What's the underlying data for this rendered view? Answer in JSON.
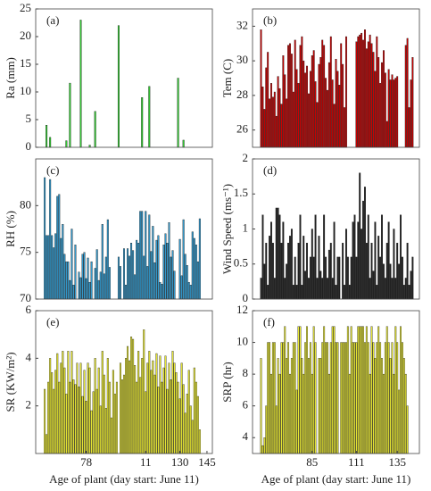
{
  "chart_data": [
    {
      "type": "bar",
      "tag": "(a)",
      "ylabel": "Ra (mm)",
      "color": "#33cc33",
      "xlim": [
        50,
        148
      ],
      "ylim": [
        0,
        25
      ],
      "yticks": [
        0,
        5,
        10,
        15,
        20,
        25
      ],
      "x": [
        55,
        56,
        57,
        58,
        59,
        60,
        61,
        62,
        63,
        64,
        65,
        66,
        67,
        68,
        69,
        70,
        71,
        72,
        73,
        74,
        75,
        76,
        77,
        78,
        79,
        80,
        81,
        82,
        83,
        84,
        85,
        86,
        87,
        88,
        89,
        90,
        91,
        92,
        93,
        94,
        95,
        96,
        97,
        98,
        99,
        100,
        101,
        102,
        103,
        104,
        105,
        106,
        107,
        108,
        109,
        110,
        111,
        112,
        113,
        114,
        115,
        116,
        117,
        118,
        119,
        120,
        121,
        122,
        123,
        124,
        125,
        126,
        127,
        128,
        129,
        130,
        131,
        132,
        133,
        134,
        135,
        136,
        137,
        138,
        139,
        140,
        141,
        142,
        143,
        144
      ],
      "values": [
        0,
        4,
        0,
        1.8,
        0,
        0,
        0,
        0,
        0,
        0,
        0,
        0,
        1.2,
        0,
        11.6,
        0,
        0,
        0,
        0,
        0,
        23,
        0,
        0,
        0,
        0,
        0.4,
        0,
        0,
        6.5,
        0,
        0,
        0,
        0,
        0,
        0,
        0,
        0,
        0,
        0,
        0,
        0,
        22,
        0,
        0,
        0,
        0,
        0,
        0,
        0,
        0,
        0,
        0,
        0,
        0,
        9,
        0,
        0,
        0,
        11,
        0,
        0,
        0,
        0,
        0,
        0,
        0,
        0,
        0,
        0,
        0,
        0,
        0,
        0,
        0,
        12.5,
        0,
        0,
        1.3,
        0,
        0,
        0,
        0,
        0,
        0,
        0,
        0,
        0,
        0,
        0,
        0
      ]
    },
    {
      "type": "bar",
      "tag": "(b)",
      "ylabel": "Tem (C)",
      "color": "#cc0000",
      "xlim": [
        50,
        148
      ],
      "ylim": [
        25,
        33
      ],
      "yticks": [
        26,
        28,
        30,
        32
      ],
      "x": [
        55,
        56,
        57,
        58,
        59,
        60,
        61,
        62,
        63,
        64,
        65,
        66,
        67,
        68,
        69,
        70,
        71,
        72,
        73,
        74,
        75,
        76,
        77,
        78,
        79,
        80,
        81,
        82,
        83,
        84,
        85,
        86,
        87,
        88,
        89,
        90,
        91,
        92,
        93,
        94,
        95,
        96,
        97,
        98,
        99,
        100,
        101,
        102,
        103,
        104,
        105,
        106,
        107,
        108,
        109,
        110,
        111,
        112,
        113,
        114,
        115,
        116,
        117,
        118,
        119,
        120,
        121,
        122,
        123,
        124,
        125,
        126,
        127,
        128,
        129,
        130,
        131,
        132,
        133,
        134,
        135,
        136,
        137,
        138,
        139,
        140,
        141,
        142,
        143,
        144
      ],
      "values": [
        31.8,
        28.5,
        27.2,
        29.6,
        30.5,
        27.8,
        28.7,
        27.9,
        28.2,
        26.8,
        29.1,
        28.4,
        27.5,
        30.3,
        29.2,
        27.8,
        30.9,
        31.0,
        30.4,
        28.2,
        31.2,
        29.5,
        28.7,
        30.9,
        31.4,
        30.0,
        29.3,
        29.7,
        28.1,
        29.4,
        30.3,
        30.6,
        28.8,
        27.6,
        29.8,
        30.2,
        31.2,
        30.9,
        29.0,
        28.3,
        29.9,
        31.4,
        28.9,
        27.5,
        30.1,
        29.4,
        28.6,
        31.0,
        29.8,
        27.3,
        31.4,
        null,
        null,
        null,
        null,
        null,
        31.1,
        31.4,
        31.5,
        31.6,
        31.2,
        31.8,
        30.7,
        31.1,
        31.5,
        31.0,
        30.5,
        29.4,
        31.4,
        30.2,
        28.7,
        29.9,
        30.6,
        29.3,
        26.5,
        29.5,
        28.9,
        29.2,
        28.9,
        29.0,
        29.1,
        null,
        null,
        null,
        null,
        30.9,
        31.3,
        27.3,
        28.9,
        30.2
      ]
    },
    {
      "type": "bar",
      "tag": "(c)",
      "ylabel": "RH (%)",
      "color": "#3399cc",
      "xlim": [
        50,
        148
      ],
      "ylim": [
        70,
        85
      ],
      "yticks": [
        70,
        75,
        80
      ],
      "x": [
        55,
        56,
        57,
        58,
        59,
        60,
        61,
        62,
        63,
        64,
        65,
        66,
        67,
        68,
        69,
        70,
        71,
        72,
        73,
        74,
        75,
        76,
        77,
        78,
        79,
        80,
        81,
        82,
        83,
        84,
        85,
        86,
        87,
        88,
        89,
        90,
        91,
        92,
        93,
        94,
        95,
        96,
        97,
        98,
        99,
        100,
        101,
        102,
        103,
        104,
        105,
        106,
        107,
        108,
        109,
        110,
        111,
        112,
        113,
        114,
        115,
        116,
        117,
        118,
        119,
        120,
        121,
        122,
        123,
        124,
        125,
        126,
        127,
        128,
        129,
        130,
        131,
        132,
        133,
        134,
        135,
        136,
        137,
        138,
        139,
        140,
        141,
        142,
        143,
        144
      ],
      "values": [
        83,
        76.8,
        76.8,
        82.8,
        76.8,
        75.5,
        77,
        81,
        81.2,
        76.5,
        78,
        74.8,
        74,
        74,
        72,
        77.5,
        71.5,
        75.8,
        null,
        72.9,
        72.3,
        74.8,
        75,
        72.2,
        74.4,
        71.8,
        74,
        null,
        73.3,
        75.3,
        72,
        72.9,
        78,
        72.7,
        74.5,
        78.5,
        73.4,
        null,
        null,
        null,
        null,
        74.5,
        73.5,
        null,
        75.4,
        71.5,
        75.4,
        74.6,
        76,
        75.2,
        72.6,
        76.3,
        76,
        79.4,
        79.4,
        74.6,
        79.4,
        73.5,
        79,
        75.1,
        77.8,
        73.9,
        76.3,
        76.8,
        71.8,
        71.6,
        75.8,
        77,
        76,
        78.2,
        74.5,
        75.2,
        73,
        null,
        null,
        76.4,
        72.5,
        78.5,
        74.8,
        73.6,
        71.8,
        71.5,
        77.2,
        76.5,
        75.8,
        74,
        78.6,
        null,
        null,
        null
      ]
    },
    {
      "type": "bar",
      "tag": "(d)",
      "ylabel": "Wind Speed (ms⁻¹)",
      "color": "#222222",
      "xlim": [
        50,
        148
      ],
      "ylim": [
        0,
        2
      ],
      "yticks": [
        0,
        0.5,
        1,
        1.5,
        2
      ],
      "x": [
        55,
        56,
        57,
        58,
        59,
        60,
        61,
        62,
        63,
        64,
        65,
        66,
        67,
        68,
        69,
        70,
        71,
        72,
        73,
        74,
        75,
        76,
        77,
        78,
        79,
        80,
        81,
        82,
        83,
        84,
        85,
        86,
        87,
        88,
        89,
        90,
        91,
        92,
        93,
        94,
        95,
        96,
        97,
        98,
        99,
        100,
        101,
        102,
        103,
        104,
        105,
        106,
        107,
        108,
        109,
        110,
        111,
        112,
        113,
        114,
        115,
        116,
        117,
        118,
        119,
        120,
        121,
        122,
        123,
        124,
        125,
        126,
        127,
        128,
        129,
        130,
        131,
        132,
        133,
        134,
        135,
        136,
        137,
        138,
        139,
        140,
        141,
        142,
        143,
        144
      ],
      "values": [
        0.3,
        1.2,
        0.5,
        0.8,
        0.2,
        0.9,
        1.1,
        0.8,
        0.3,
        1.3,
        1.3,
        1.2,
        0.8,
        1.1,
        0.3,
        0.5,
        0.8,
        0.9,
        1,
        0.2,
        0.6,
        0.2,
        0.8,
        1.2,
        0.2,
        0.9,
        0.4,
        0.8,
        0.3,
        0.6,
        1.0,
        0.6,
        1.2,
        0.3,
        0.9,
        0.4,
        0.3,
        1.2,
        0.6,
        0.3,
        0.7,
        0.8,
        0.3,
        1.1,
        0.2,
        0.6,
        0.6,
        null,
        0.8,
        0.2,
        1.0,
        0.6,
        0.2,
        0.6,
        1.1,
        1.2,
        0.6,
        1.1,
        1.8,
        1.0,
        1.4,
        1.6,
        0.8,
        1.2,
        0.3,
        0.8,
        0.4,
        1.1,
        0.2,
        0.9,
        0.6,
        1.2,
        0.5,
        0.3,
        0.8,
        1.1,
        0.5,
        0.3,
        1.0,
        0.3,
        0.8,
        0.5,
        1.2,
        0.6,
        0.2,
        0.3,
        0.8,
        0.2,
        0.4,
        0.6
      ]
    },
    {
      "type": "bar",
      "tag": "(e)",
      "ylabel": "SR (KW/m²)",
      "xlabel": "Age of plant (day start: June 11)",
      "color": "#e6e633",
      "xlim": [
        50,
        148
      ],
      "ylim": [
        0,
        6
      ],
      "yticks": [
        2,
        4,
        6
      ],
      "xticks": [
        78,
        {
          "value": 111,
          "label": "11"
        },
        130,
        145
      ],
      "x": [
        55,
        56,
        57,
        58,
        59,
        60,
        61,
        62,
        63,
        64,
        65,
        66,
        67,
        68,
        69,
        70,
        71,
        72,
        73,
        74,
        75,
        76,
        77,
        78,
        79,
        80,
        81,
        82,
        83,
        84,
        85,
        86,
        87,
        88,
        89,
        90,
        91,
        92,
        93,
        94,
        95,
        96,
        97,
        98,
        99,
        100,
        101,
        102,
        103,
        104,
        105,
        106,
        107,
        108,
        109,
        110,
        111,
        112,
        113,
        114,
        115,
        116,
        117,
        118,
        119,
        120,
        121,
        122,
        123,
        124,
        125,
        126,
        127,
        128,
        129,
        130,
        131,
        132,
        133,
        134,
        135,
        136,
        137,
        138,
        139,
        140,
        141,
        142,
        143,
        144
      ],
      "values": [
        2.7,
        0.8,
        3.0,
        4.0,
        3.4,
        2.7,
        3.5,
        4.2,
        3.0,
        3.8,
        4.3,
        3.6,
        2.5,
        4.3,
        3.0,
        4.3,
        3.1,
        2.9,
        3.8,
        2.8,
        3.8,
        2.4,
        3.5,
        2.2,
        3.8,
        3.6,
        1.8,
        2.6,
        4.0,
        2.7,
        3.6,
        2.0,
        4.3,
        3.3,
        1.9,
        4.0,
        3.0,
        1.5,
        3.5,
        2.5,
        3.0,
        null,
        3.8,
        3.1,
        3.3,
        4.0,
        4.5,
        3.9,
        4.9,
        4.8,
        3.7,
        3.0,
        4.3,
        3.2,
        4.0,
        5.2,
        2.6,
        3.8,
        4.3,
        3.5,
        3.9,
        3.3,
        4.2,
        2.8,
        4.1,
        3.0,
        3.6,
        4.1,
        2.7,
        3.8,
        3.1,
        4.3,
        3.8,
        3.4,
        3.0,
        2.3,
        3.8,
        2.9,
        1.7,
        2.5,
        3.5,
        2.0,
        1.4,
        3.6,
        3.0,
        2.4,
        1.0,
        null,
        null,
        null
      ]
    },
    {
      "type": "bar",
      "tag": "(f)",
      "ylabel": "SRP (hr)",
      "xlabel": "Age of plant (day start: June 11)",
      "color": "#e6e633",
      "xlim": [
        50,
        148
      ],
      "ylim": [
        3,
        12
      ],
      "yticks": [
        4,
        6,
        8,
        10,
        12
      ],
      "xticks": [
        85,
        111,
        135
      ],
      "x": [
        55,
        56,
        57,
        58,
        59,
        60,
        61,
        62,
        63,
        64,
        65,
        66,
        67,
        68,
        69,
        70,
        71,
        72,
        73,
        74,
        75,
        76,
        77,
        78,
        79,
        80,
        81,
        82,
        83,
        84,
        85,
        86,
        87,
        88,
        89,
        90,
        91,
        92,
        93,
        94,
        95,
        96,
        97,
        98,
        99,
        100,
        101,
        102,
        103,
        104,
        105,
        106,
        107,
        108,
        109,
        110,
        111,
        112,
        113,
        114,
        115,
        116,
        117,
        118,
        119,
        120,
        121,
        122,
        123,
        124,
        125,
        126,
        127,
        128,
        129,
        130,
        131,
        132,
        133,
        134,
        135,
        136,
        137,
        138,
        139,
        140,
        141,
        142,
        143,
        144
      ],
      "values": [
        9,
        3.5,
        4,
        6,
        10,
        10,
        8,
        10,
        10,
        6,
        9,
        8,
        10,
        10,
        11,
        9,
        10,
        8,
        9,
        10,
        10,
        7,
        11,
        11,
        9,
        8,
        10,
        11,
        9,
        10,
        8,
        11,
        10,
        null,
        9,
        9,
        10,
        11,
        10,
        10,
        8,
        10,
        11,
        11,
        10,
        10,
        null,
        10,
        10,
        10,
        10,
        11,
        8,
        11,
        10,
        10,
        10,
        11,
        11,
        11,
        11,
        10,
        11,
        10,
        8,
        11,
        10,
        9,
        10,
        11,
        10,
        9,
        8,
        10,
        11,
        10,
        9,
        10,
        8,
        11,
        10,
        7,
        11,
        10,
        9,
        8,
        6,
        null,
        null,
        null
      ]
    }
  ]
}
